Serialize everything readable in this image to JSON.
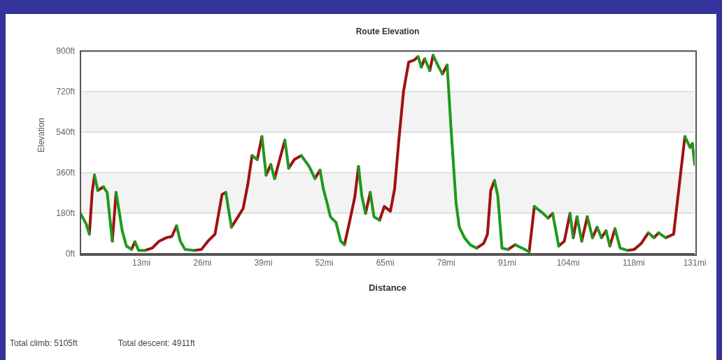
{
  "chart_data": {
    "type": "line",
    "title": "Route Elevation",
    "xlabel": "Distance",
    "ylabel": "Elevation",
    "xlim": [
      0,
      131
    ],
    "xticks": [
      {
        "value": 13,
        "label": "13mi"
      },
      {
        "value": 26,
        "label": "26mi"
      },
      {
        "value": 39,
        "label": "39mi"
      },
      {
        "value": 52,
        "label": "52mi"
      },
      {
        "value": 65,
        "label": "65mi"
      },
      {
        "value": 78,
        "label": "78mi"
      },
      {
        "value": 91,
        "label": "91mi"
      },
      {
        "value": 104,
        "label": "104mi"
      },
      {
        "value": 118,
        "label": "118mi"
      },
      {
        "value": 131,
        "label": "131mi"
      }
    ],
    "ylim": [
      0,
      900
    ],
    "yticks": [
      {
        "value": 0,
        "label": "0ft"
      },
      {
        "value": 180,
        "label": "180ft"
      },
      {
        "value": 360,
        "label": "360ft"
      },
      {
        "value": 540,
        "label": "540ft"
      },
      {
        "value": 720,
        "label": "720ft"
      },
      {
        "value": 900,
        "label": "900ft"
      }
    ],
    "grid": "y",
    "legend": false,
    "marker": "none",
    "line_style": "solid",
    "annotations": [
      "Total climb: 5105ft",
      "Total descent: 4911ft"
    ],
    "x": [
      0,
      1.2,
      1.9,
      2.5,
      3.0,
      3.7,
      4.9,
      5.7,
      6.4,
      6.8,
      7.6,
      8.2,
      8.9,
      9.8,
      10.9,
      11.6,
      12.4,
      13.8,
      15.3,
      16.8,
      18.3,
      19.5,
      20.5,
      21.3,
      22.3,
      24.3,
      25.8,
      27.2,
      28.7,
      30.2,
      31.0,
      32.2,
      33.6,
      34.7,
      35.7,
      36.6,
      37.7,
      38.7,
      39.6,
      40.6,
      41.4,
      43.6,
      44.4,
      45.6,
      47.1,
      48.8,
      50.0,
      51.1,
      51.8,
      52.6,
      53.3,
      54.5,
      55.5,
      56.3,
      57.3,
      58.5,
      59.3,
      60.0,
      60.8,
      61.8,
      62.6,
      63.8,
      64.8,
      66.1,
      67.0,
      67.9,
      68.9,
      70.0,
      71.2,
      72.0,
      72.7,
      73.4,
      74.5,
      75.2,
      76.4,
      77.2,
      78.2,
      79.0,
      80.1,
      80.8,
      81.9,
      83.1,
      84.5,
      86.0,
      86.8,
      87.5,
      88.3,
      89.0,
      89.9,
      91.2,
      92.7,
      94.2,
      95.7,
      96.8,
      97.7,
      98.7,
      99.7,
      100.7,
      102.0,
      103.2,
      104.4,
      105.1,
      105.9,
      106.9,
      108.1,
      109.2,
      110.2,
      111.1,
      112.1,
      112.9,
      114.0,
      115.1,
      116.6,
      118.1,
      119.6,
      121.1,
      122.3,
      123.3,
      124.8,
      126.5,
      127.7,
      128.9,
      130.0,
      130.5,
      131.0
    ],
    "series": [
      {
        "color": "#a01212",
        "values": [
          null,
          null,
          87,
          272,
          349,
          null,
          null,
          null,
          null,
          56,
          272,
          null,
          null,
          null,
          null,
          null,
          null,
          15,
          25,
          56,
          71,
          77,
          124,
          null,
          null,
          null,
          null,
          null,
          null,
          null,
          null,
          118,
          164,
          201,
          309,
          436,
          null,
          null,
          349,
          396,
          null,
          null,
          380,
          418,
          436,
          null,
          null,
          null,
          null,
          null,
          null,
          null,
          null,
          40,
          133,
          251,
          387,
          null,
          null,
          null,
          null,
          149,
          210,
          189,
          288,
          504,
          721,
          851,
          860,
          875,
          null,
          null,
          813,
          881,
          null,
          null,
          null,
          null,
          null,
          null,
          null,
          null,
          25,
          46,
          87,
          281,
          325,
          null,
          null,
          null,
          null,
          null,
          9,
          210,
          null,
          null,
          null,
          null,
          34,
          56,
          179,
          null,
          null,
          56,
          164,
          null,
          null,
          71,
          102,
          null,
          null,
          null,
          15,
          19,
          46,
          93,
          null,
          null,
          71,
          87,
          303,
          520,
          null,
          null,
          null
        ]
      },
      {
        "color": "#a01212",
        "values": [
          null,
          null,
          null,
          null,
          null,
          281,
          297,
          null,
          null,
          null,
          null,
          null,
          null,
          null,
          19,
          53,
          null,
          null,
          null,
          null,
          null,
          null,
          null,
          null,
          null,
          15,
          19,
          56,
          87,
          263,
          272,
          null,
          null,
          null,
          null,
          null,
          418,
          520,
          null,
          null,
          334,
          504,
          null,
          null,
          null,
          null,
          334,
          371,
          null,
          null,
          null,
          null,
          null,
          null,
          null,
          null,
          null,
          null,
          179,
          272,
          null,
          null,
          null,
          null,
          null,
          null,
          null,
          null,
          null,
          null,
          829,
          866,
          null,
          null,
          null,
          798,
          838,
          null,
          null,
          null,
          null,
          null,
          null,
          null,
          null,
          null,
          null,
          null,
          null,
          19,
          40,
          null,
          null,
          null,
          null,
          null,
          158,
          179,
          null,
          null,
          null,
          71,
          164,
          null,
          null,
          71,
          118,
          null,
          null,
          34,
          111,
          null,
          null,
          null,
          null,
          null,
          71,
          93,
          null,
          null,
          null,
          null,
          473,
          489,
          null
        ]
      },
      {
        "color": "#1c9a1c",
        "values": [
          179,
          133,
          87,
          null,
          null,
          null,
          297,
          272,
          133,
          56,
          null,
          null,
          null,
          null,
          null,
          53,
          15,
          15,
          null,
          null,
          null,
          null,
          null,
          null,
          null,
          null,
          null,
          null,
          null,
          null,
          272,
          118,
          null,
          null,
          null,
          null,
          null,
          520,
          349,
          null,
          null,
          504,
          380,
          null,
          null,
          null,
          null,
          371,
          288,
          226,
          164,
          139,
          56,
          40,
          null,
          null,
          null,
          null,
          null,
          272,
          164,
          149,
          null,
          null,
          null,
          null,
          null,
          null,
          null,
          null,
          null,
          866,
          813,
          null,
          null,
          null,
          838,
          566,
          226,
          118,
          71,
          40,
          25,
          null,
          null,
          null,
          null,
          null,
          null,
          null,
          40,
          25,
          9,
          null,
          null,
          null,
          null,
          179,
          34,
          null,
          null,
          null,
          164,
          56,
          null,
          null,
          118,
          71,
          null,
          null,
          111,
          25,
          15,
          null,
          null,
          null,
          null,
          93,
          71,
          null,
          null,
          null,
          null,
          489,
          396
        ]
      },
      {
        "color": "#1c9a1c",
        "values": [
          null,
          null,
          null,
          null,
          349,
          281,
          null,
          null,
          null,
          null,
          272,
          195,
          102,
          34,
          19,
          null,
          null,
          null,
          null,
          null,
          null,
          null,
          124,
          56,
          19,
          15,
          null,
          null,
          null,
          null,
          null,
          null,
          null,
          null,
          null,
          436,
          418,
          null,
          null,
          396,
          334,
          null,
          null,
          null,
          436,
          387,
          334,
          null,
          null,
          null,
          null,
          null,
          null,
          null,
          null,
          null,
          387,
          257,
          179,
          null,
          null,
          null,
          null,
          null,
          null,
          null,
          null,
          null,
          null,
          875,
          829,
          null,
          null,
          881,
          829,
          798,
          null,
          null,
          null,
          null,
          null,
          null,
          null,
          null,
          null,
          null,
          325,
          257,
          25,
          19,
          null,
          null,
          null,
          210,
          195,
          179,
          158,
          null,
          null,
          null,
          179,
          71,
          null,
          null,
          164,
          71,
          null,
          null,
          102,
          34,
          null,
          null,
          null,
          null,
          null,
          93,
          71,
          null,
          null,
          null,
          null,
          520,
          473,
          null,
          null
        ]
      }
    ]
  }
}
